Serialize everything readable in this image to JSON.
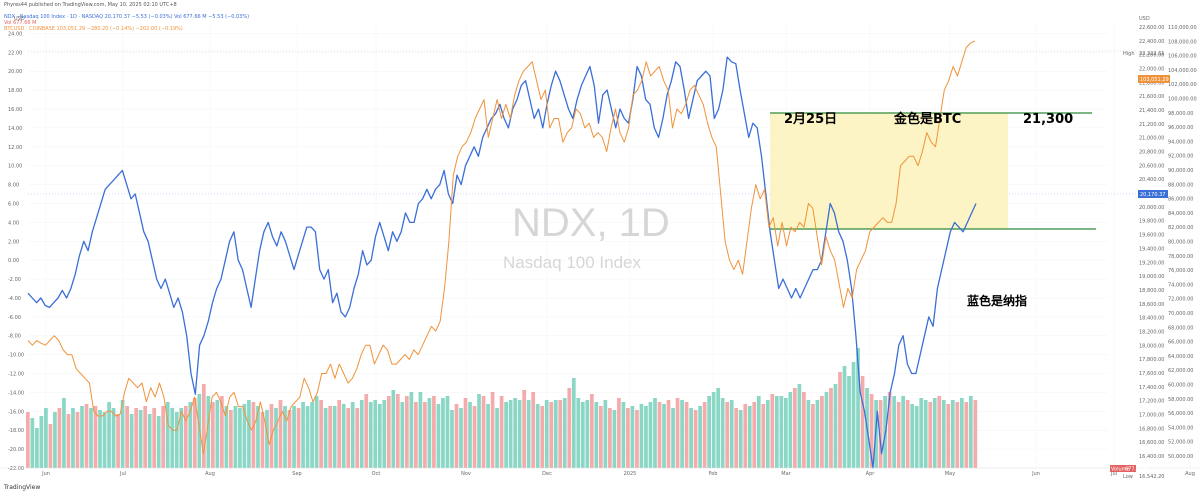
{
  "header": {
    "published": "Phyres44 published on TradingView.com, May 10, 2025 02:10 UTC+8",
    "line1": "NDX · Nasdaq 100 Index · 1D · NASDAQ  20,170.37  −5.53 (−0.03%)  Vol 677.66 M  −5.53 (−0.03%)",
    "line2": "Vol  677.66 M",
    "line3": "BTCUSD · COINBASE  103,051.29  −280.20 (−0.14%)  −202.00 (−0.19%)"
  },
  "watermark": {
    "title": "NDX, 1D",
    "subtitle": "Nasdaq 100 Index"
  },
  "annotations": {
    "date_label": "2月25日",
    "btc_label": "金色是BTC",
    "level_label": "21,300",
    "ndx_label": "蓝色是纳指"
  },
  "colors": {
    "ndx": "#3b6fd8",
    "btc": "#f0923a",
    "vol_up": "#7dd3c0",
    "vol_down": "#f3a2a2",
    "box_fill": "#fcf4c4",
    "box_line": "#2e8b3a",
    "date_color": "#2e9e3e",
    "btc_label_color": "#f0923a",
    "ndx_label_color": "#3b6fd8"
  },
  "price_tags": {
    "usd_left": "USD",
    "usd_right": "USD",
    "high_label": "High",
    "high_value": "22,222.61",
    "ndx_last": "20,170.37",
    "btc_last": "103,051.29",
    "low_label": "Low",
    "low_value": "16,542.20",
    "volume_label": "Volume",
    "volume_value": "677.66 M"
  },
  "footer": {
    "logo": "TradingView"
  },
  "chart_data": {
    "type": "line",
    "title": "NDX, 1D",
    "subtitle": "Nasdaq 100 Index",
    "x_ticks": [
      "Jun",
      "Jul",
      "Aug",
      "Sep",
      "Oct",
      "Nov",
      "Dec",
      "2025",
      "Feb",
      "Mar",
      "Apr",
      "May",
      "Jun",
      "Jul",
      "Aug"
    ],
    "left_axis_ticks": [
      "24.00",
      "22.00",
      "20.00",
      "18.00",
      "16.00",
      "14.00",
      "12.00",
      "10.00",
      "8.00",
      "6.00",
      "4.00",
      "2.00",
      "0.00",
      "-2.00",
      "-4.00",
      "-6.00",
      "-8.00",
      "-10.00",
      "-12.00",
      "-14.00",
      "-16.00",
      "-18.00",
      "-20.00",
      "-22.00"
    ],
    "ndx_axis_ticks": [
      "22,600.00",
      "22,400.00",
      "22,200.00",
      "22,000.00",
      "21,800.00",
      "21,600.00",
      "21,400.00",
      "21,200.00",
      "21,000.00",
      "20,800.00",
      "20,600.00",
      "20,400.00",
      "20,200.00",
      "20,000.00",
      "19,800.00",
      "19,600.00",
      "19,400.00",
      "19,200.00",
      "19,000.00",
      "18,800.00",
      "18,600.00",
      "18,400.00",
      "18,200.00",
      "18,000.00",
      "17,800.00",
      "17,600.00",
      "17,400.00",
      "17,200.00",
      "17,000.00",
      "16,800.00",
      "16,600.00",
      "16,400.00"
    ],
    "btc_axis_ticks": [
      "110,000.00",
      "108,000.00",
      "106,000.00",
      "104,000.00",
      "102,000.00",
      "100,000.00",
      "98,000.00",
      "96,000.00",
      "94,000.00",
      "92,000.00",
      "90,000.00",
      "88,000.00",
      "86,000.00",
      "84,000.00",
      "82,000.00",
      "80,000.00",
      "78,000.00",
      "76,000.00",
      "74,000.00",
      "72,000.00",
      "70,000.00",
      "68,000.00",
      "66,000.00",
      "64,000.00",
      "62,000.00",
      "60,000.00",
      "58,000.00",
      "56,000.00",
      "54,000.00",
      "52,000.00",
      "50,000.00"
    ],
    "ylim_left": [
      -22,
      25
    ],
    "series": [
      {
        "name": "NDX",
        "color": "#3b6fd8",
        "values": [
          -3.5,
          -4,
          -4.5,
          -4,
          -4.8,
          -5,
          -4.5,
          -4,
          -3.2,
          -4,
          -3,
          -1.5,
          0.5,
          2,
          1,
          3,
          4.5,
          6,
          7.5,
          8,
          8.5,
          9,
          9.5,
          8,
          6.5,
          7,
          5,
          3,
          2,
          0,
          -2,
          -3,
          -2,
          -3.5,
          -5,
          -4,
          -5.5,
          -8,
          -12,
          -14.2,
          -9,
          -8,
          -6.5,
          -4.5,
          -3,
          -2,
          0,
          2,
          3,
          0,
          -1,
          -3,
          -5,
          -2,
          1,
          3,
          4,
          2.5,
          1.5,
          3,
          2,
          0.5,
          -1,
          0.5,
          2,
          3.5,
          3.5,
          3,
          -1,
          -2,
          -1,
          -4.5,
          -3.5,
          -5.5,
          -6,
          -5,
          -3,
          -1.5,
          1,
          -0.5,
          0,
          2.5,
          4,
          2.5,
          1,
          3,
          2,
          3,
          5,
          4,
          4,
          6,
          6.5,
          7.5,
          6.5,
          7.5,
          8,
          9.5,
          7,
          6,
          9,
          8,
          10,
          11,
          12,
          11,
          13,
          14,
          15,
          15.5,
          16.5,
          15,
          14,
          16,
          17,
          18.5,
          19,
          17,
          15,
          16,
          14,
          16.5,
          18.5,
          20,
          19,
          17.5,
          16,
          15,
          17,
          18.5,
          19.5,
          20.5,
          18.5,
          14.5,
          17.5,
          18,
          16,
          14,
          16,
          15,
          14.5,
          17,
          20.5,
          19.5,
          17,
          16.5,
          14,
          13,
          15,
          17.5,
          19,
          21,
          20.5,
          18,
          15,
          17,
          19,
          19.5,
          20,
          19.5,
          15,
          16,
          18,
          21.5,
          21,
          20.8,
          18,
          15.5,
          13,
          14.5,
          14,
          11,
          7,
          3,
          0,
          -3,
          -2,
          -3,
          -4,
          -3,
          -4,
          -3,
          -2,
          -1,
          -1,
          0,
          3,
          6,
          5,
          3,
          2,
          0,
          -3,
          -8,
          -14,
          -16,
          -19,
          -22,
          -16,
          -20.5,
          -18,
          -14,
          -12,
          -9,
          -8,
          -11,
          -12,
          -12,
          -10,
          -8,
          -6,
          -7,
          -3,
          -1,
          1,
          3,
          4,
          3.5,
          3,
          4,
          5,
          6
        ]
      },
      {
        "name": "BTC",
        "color": "#f0923a",
        "values": [
          -8.5,
          -9,
          -8.5,
          -8.8,
          -9,
          -8.5,
          -8,
          -8.5,
          -9.5,
          -10,
          -10,
          -11.5,
          -12,
          -12.5,
          -13,
          -16,
          -16.5,
          -16.5,
          -16,
          -16,
          -16.5,
          -16.3,
          -14,
          -12.5,
          -13,
          -13.5,
          -13,
          -15,
          -13.5,
          -14.5,
          -13,
          -14.5,
          -17.5,
          -18,
          -18,
          -16,
          -17,
          -16,
          -14.5,
          -17.5,
          -20.5,
          -17.5,
          -14.5,
          -14,
          -15,
          -16.5,
          -14.5,
          -14,
          -15.5,
          -15.5,
          -17,
          -18,
          -17,
          -15,
          -17,
          -19.5,
          -18,
          -17,
          -16,
          -17,
          -15.5,
          -15,
          -14.5,
          -12.5,
          -13.5,
          -15,
          -14,
          -12,
          -12,
          -11,
          -12.5,
          -11,
          -12,
          -13,
          -12.5,
          -11.5,
          -10,
          -9,
          -9,
          -11,
          -10,
          -9,
          -9.5,
          -11,
          -11,
          -10.5,
          -10,
          -10.5,
          -9.5,
          -10,
          -9,
          -8,
          -7,
          -7.5,
          -6.5,
          -3,
          2,
          9,
          11,
          12,
          12.5,
          13.5,
          15,
          16,
          17,
          13,
          15,
          17,
          15,
          16.5,
          15,
          17.5,
          19,
          20,
          20.5,
          21,
          19,
          17,
          18,
          14,
          15,
          15,
          12.5,
          13.5,
          14,
          16,
          15.5,
          14,
          14.5,
          13,
          13.5,
          13,
          11.5,
          14,
          16,
          13.5,
          12.5,
          14,
          17.5,
          18,
          19,
          21,
          19.5,
          20,
          20.5,
          19,
          18,
          14,
          16,
          15.5,
          16.5,
          18,
          18.5,
          17.5,
          16.5,
          14.5,
          13,
          12,
          7,
          2,
          0,
          -1,
          0,
          -1.5,
          2,
          5.5,
          8,
          6.5,
          7.5,
          3.5,
          4.5,
          1.5,
          4,
          1.5,
          3.5,
          3,
          4,
          3.5,
          6,
          5.5,
          2.5,
          -0.5,
          2.5,
          1,
          0,
          -2.5,
          -5,
          -3,
          -4,
          -1,
          0,
          1,
          3,
          3.5,
          4,
          4.5,
          4,
          4,
          6,
          10,
          10.5,
          11,
          11,
          10,
          11.5,
          13.5,
          12.5,
          12,
          15,
          18,
          19,
          20.5,
          19.5,
          21,
          22.5,
          23,
          23.2
        ]
      }
    ],
    "volume": {
      "values": [
        28,
        25,
        20,
        26,
        30,
        22,
        28,
        30,
        35,
        27,
        30,
        28,
        31,
        32,
        30,
        31,
        29,
        28,
        33,
        30,
        27,
        34,
        31,
        27,
        30,
        29,
        31,
        27,
        30,
        26,
        31,
        33,
        30,
        28,
        30,
        31,
        33,
        35,
        37,
        42,
        36,
        33,
        34,
        36,
        31,
        29,
        31,
        30,
        32,
        34,
        33,
        31,
        28,
        29,
        32,
        30,
        34,
        31,
        29,
        31,
        30,
        33,
        31,
        33,
        36,
        34,
        30,
        31,
        31,
        34,
        32,
        30,
        33,
        30,
        34,
        37,
        33,
        34,
        32,
        34,
        36,
        39,
        37,
        33,
        36,
        38,
        33,
        38,
        33,
        35,
        36,
        32,
        35,
        36,
        29,
        32,
        30,
        35,
        33,
        31,
        37,
        36,
        32,
        38,
        30,
        36,
        33,
        34,
        35,
        34,
        39,
        34,
        38,
        32,
        31,
        34,
        33,
        34,
        34,
        35,
        40,
        45,
        35,
        33,
        34,
        37,
        33,
        31,
        34,
        30,
        29,
        35,
        33,
        30,
        31,
        29,
        32,
        31,
        33,
        35,
        33,
        32,
        34,
        30,
        35,
        34,
        33,
        30,
        29,
        31,
        33,
        36,
        38,
        40,
        35,
        33,
        34,
        30,
        29,
        32,
        31,
        33,
        36,
        32,
        34,
        37,
        36,
        36,
        35,
        38,
        40,
        42,
        38,
        34,
        32,
        34,
        36,
        38,
        40,
        42,
        48,
        51,
        46,
        53,
        60,
        46,
        40,
        37,
        34,
        34,
        36,
        38,
        36,
        33,
        36,
        34,
        32,
        31,
        35,
        34,
        33,
        35,
        36,
        34,
        32,
        34,
        33,
        35,
        33,
        36,
        34
      ],
      "ylim": [
        0,
        150
      ]
    },
    "ndx_last": 20170.37,
    "btc_last": 103051.29,
    "ndx_high": 22222.61,
    "ndx_low": 16542.2,
    "volume_last": "677.66 M"
  }
}
